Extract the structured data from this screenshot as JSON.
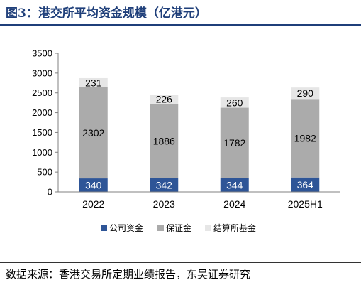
{
  "title": "图3：港交所平均资金规模（亿港元）",
  "source": "数据来源：香港交易所定期业绩报告，东吴证券研究",
  "chart_data": {
    "type": "bar",
    "stacked": true,
    "categories": [
      "2022",
      "2023",
      "2024",
      "2025H1"
    ],
    "series": [
      {
        "name": "公司资金",
        "values": [
          340,
          342,
          344,
          364
        ],
        "color": "#2e5597",
        "label_color": "#ffffff"
      },
      {
        "name": "保证金",
        "values": [
          2302,
          1886,
          1782,
          1982
        ],
        "color": "#ababab",
        "label_color": "#000000"
      },
      {
        "name": "结算所基金",
        "values": [
          231,
          226,
          260,
          290
        ],
        "color": "#e6e6e6",
        "label_color": "#000000"
      }
    ],
    "yticks": [
      0,
      500,
      1000,
      1500,
      2000,
      2500,
      3000,
      3500
    ],
    "ylim": [
      0,
      3500
    ],
    "grid": false,
    "legend_position": "bottom"
  }
}
